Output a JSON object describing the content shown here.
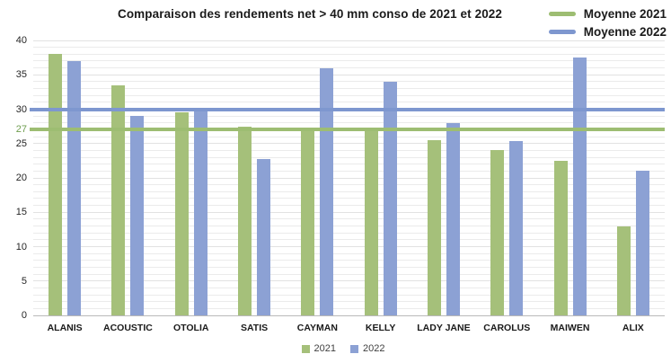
{
  "title": "Comparaison des rendements net > 40 mm conso de 2021 et 2022",
  "legend_top": {
    "items": [
      {
        "label": "Moyenne 2021",
        "color": "#9dbd72"
      },
      {
        "label": "Moyenne 2022",
        "color": "#7e97cf"
      }
    ]
  },
  "legend_bottom": {
    "items": [
      {
        "label": "2021",
        "color": "#a5c07a"
      },
      {
        "label": "2022",
        "color": "#8ca1d4"
      }
    ]
  },
  "chart_data": {
    "type": "bar",
    "title": "Comparaison des rendements net > 40 mm conso de 2021 et 2022",
    "categories": [
      "ALANIS",
      "ACOUSTIC",
      "OTOLIA",
      "SATIS",
      "CAYMAN",
      "KELLY",
      "LADY JANE",
      "CAROLUS",
      "MAIWEN",
      "ALIX"
    ],
    "series": [
      {
        "name": "2021",
        "color": "#a5c07a",
        "values": [
          38,
          33.5,
          29.5,
          27.5,
          27,
          26.8,
          25.5,
          24,
          22.5,
          13
        ]
      },
      {
        "name": "2022",
        "color": "#8ca1d4",
        "values": [
          37,
          29,
          30,
          22.8,
          36,
          34,
          28,
          25.3,
          37.5,
          21
        ]
      }
    ],
    "mean_lines": [
      {
        "name": "Moyenne 2021",
        "value": 27,
        "color": "#9dbd72"
      },
      {
        "name": "Moyenne 2022",
        "value": 30,
        "color": "#7e97cf"
      }
    ],
    "xlabel": "",
    "ylabel": "",
    "ylim": [
      0,
      40
    ],
    "yticks": [
      {
        "v": 40
      },
      {
        "v": 35
      },
      {
        "v": 30
      },
      {
        "v": 27,
        "special": true
      },
      {
        "v": 25
      },
      {
        "v": 20
      },
      {
        "v": 15
      },
      {
        "v": 10
      },
      {
        "v": 5
      },
      {
        "v": 0
      }
    ],
    "special_tick_color": "#6f9e4f",
    "grid": true,
    "grid_step": 1,
    "grid_major_step": 5,
    "legend_position": "top-right (mean lines) and bottom (series)"
  }
}
